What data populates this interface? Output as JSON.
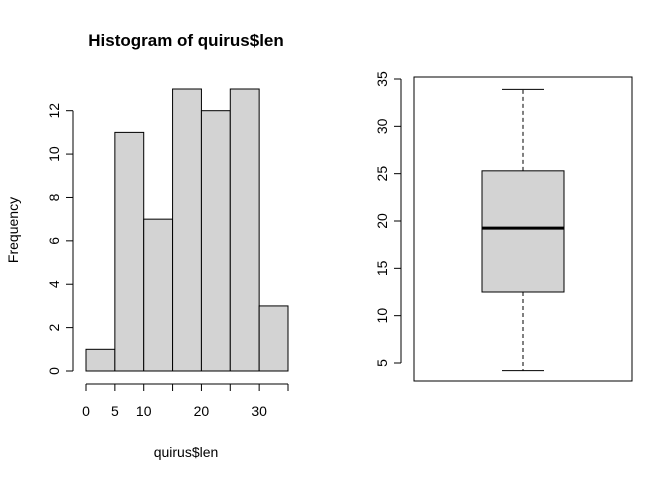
{
  "chart_data": [
    {
      "type": "bar",
      "subtype": "histogram",
      "title": "Histogram of quirus$len",
      "xlabel": "quirus$len",
      "ylabel": "Frequency",
      "bins": [
        {
          "from": 0,
          "to": 5,
          "count": 1
        },
        {
          "from": 5,
          "to": 10,
          "count": 11
        },
        {
          "from": 10,
          "to": 15,
          "count": 7
        },
        {
          "from": 15,
          "to": 20,
          "count": 13
        },
        {
          "from": 20,
          "to": 25,
          "count": 12
        },
        {
          "from": 25,
          "to": 30,
          "count": 13
        },
        {
          "from": 30,
          "to": 35,
          "count": 3
        }
      ],
      "xlim": [
        0,
        35
      ],
      "ylim": [
        0,
        13
      ],
      "x_ticks": [
        0,
        5,
        10,
        15,
        20,
        25,
        30,
        35
      ],
      "x_tick_labels": [
        "0",
        "5",
        "10",
        "",
        "20",
        "",
        "30",
        ""
      ],
      "y_ticks": [
        0,
        2,
        4,
        6,
        8,
        10,
        12
      ],
      "y_tick_labels": [
        "0",
        "2",
        "4",
        "6",
        "8",
        "10",
        "12"
      ],
      "bar_fill": "#d3d3d3",
      "grid": false
    },
    {
      "type": "box",
      "title": "",
      "min": 4.2,
      "q1": 12.5,
      "median": 19.25,
      "q3": 25.3,
      "max": 33.9,
      "ylim": [
        4,
        35
      ],
      "y_ticks": [
        5,
        10,
        15,
        20,
        25,
        30,
        35
      ],
      "y_tick_labels": [
        "5",
        "10",
        "15",
        "20",
        "25",
        "30",
        "35"
      ],
      "box_fill": "#d3d3d3",
      "grid": false
    }
  ]
}
